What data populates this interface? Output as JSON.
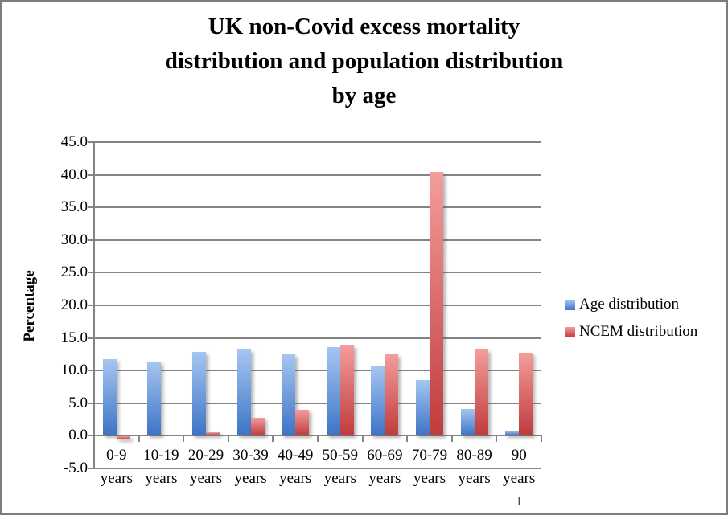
{
  "title": {
    "text": "UK non-Covid excess mortality distribution and population distribution by age",
    "lines": [
      "UK non-Covid excess mortality",
      "distribution and population distribution",
      "by age"
    ]
  },
  "y_axis": {
    "title": "Percentage",
    "tick_labels": [
      "45.0",
      "40.0",
      "35.0",
      "30.0",
      "25.0",
      "20.0",
      "15.0",
      "10.0",
      "5.0",
      "0.0",
      "-5.0"
    ]
  },
  "x_axis": {
    "label_lines": [
      [
        "0-9",
        "years"
      ],
      [
        "10-19",
        "years"
      ],
      [
        "20-29",
        "years"
      ],
      [
        "30-39",
        "years"
      ],
      [
        "40-49",
        "years"
      ],
      [
        "50-59",
        "years"
      ],
      [
        "60-69",
        "years"
      ],
      [
        "70-79",
        "years"
      ],
      [
        "80-89",
        "years"
      ],
      [
        "90",
        "years",
        "+"
      ]
    ]
  },
  "legend": {
    "position": "right",
    "items": [
      "Age distribution",
      "NCEM distribution"
    ]
  },
  "colors": {
    "grid": "#848484",
    "blue_top": "#A6C6F1",
    "blue_bottom": "#3D74C6",
    "red_top": "#F49D9B",
    "red_bottom": "#C03B3C"
  },
  "chart_data": {
    "type": "bar",
    "title": "UK non-Covid excess mortality distribution and population distribution by age",
    "categories": [
      "0-9 years",
      "10-19 years",
      "20-29 years",
      "30-39 years",
      "40-49 years",
      "50-59 years",
      "60-69 years",
      "70-79 years",
      "80-89 years",
      "90 years +"
    ],
    "series": [
      {
        "name": "Age distribution",
        "color_top": "#A6C6F1",
        "color_bottom": "#3D74C6",
        "values": [
          11.8,
          11.4,
          12.8,
          13.2,
          12.5,
          13.6,
          10.6,
          8.5,
          4.1,
          0.8
        ]
      },
      {
        "name": "NCEM distribution",
        "color_top": "#F49D9B",
        "color_bottom": "#C03B3C",
        "values": [
          -0.5,
          0.0,
          0.5,
          2.8,
          4.0,
          13.9,
          12.5,
          40.5,
          13.2,
          12.7
        ]
      }
    ],
    "xlabel": "",
    "ylabel": "Percentage",
    "ylim": [
      -5,
      45
    ],
    "ytick_step": 5,
    "grid": true,
    "legend_position": "right"
  }
}
